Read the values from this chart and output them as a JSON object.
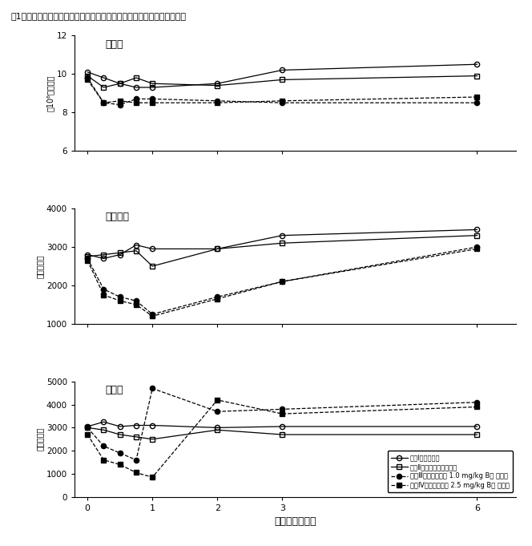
{
  "title": "図1：キシラジン投与による赤血球数，リンパ球数および好中球数の変動",
  "xlabel": "（処置後時間）",
  "x": [
    0,
    0.25,
    0.5,
    0.75,
    1,
    2,
    3,
    6
  ],
  "xticks": [
    0,
    1,
    2,
    3,
    6
  ],
  "rbc": {
    "label": "赤血球",
    "ylabel": "（10⁶個／㎣）",
    "ylim": [
      6,
      12
    ],
    "yticks": [
      6,
      8,
      10,
      12
    ],
    "I": [
      10.1,
      9.8,
      9.5,
      9.3,
      9.3,
      9.5,
      10.2,
      10.5
    ],
    "II": [
      9.9,
      9.3,
      9.5,
      9.8,
      9.5,
      9.4,
      9.7,
      9.9
    ],
    "III": [
      9.8,
      8.5,
      8.4,
      8.7,
      8.7,
      8.6,
      8.5,
      8.5
    ],
    "IV": [
      9.7,
      8.5,
      8.6,
      8.5,
      8.5,
      8.5,
      8.6,
      8.8
    ]
  },
  "lymph": {
    "label": "リンパ球",
    "ylabel": "（個／㎣）",
    "ylim": [
      1000,
      4000
    ],
    "yticks": [
      1000,
      2000,
      3000,
      4000
    ],
    "I": [
      2800,
      2700,
      2800,
      3050,
      2950,
      2950,
      3300,
      3450
    ],
    "II": [
      2750,
      2800,
      2850,
      2900,
      2500,
      2950,
      3100,
      3300
    ],
    "III": [
      2700,
      1900,
      1700,
      1600,
      1250,
      1700,
      2100,
      3000
    ],
    "IV": [
      2650,
      1750,
      1600,
      1500,
      1200,
      1650,
      2100,
      2950
    ]
  },
  "neutro": {
    "label": "好中球",
    "ylabel": "（個／㎣）",
    "ylim": [
      0,
      5000
    ],
    "yticks": [
      0,
      1000,
      2000,
      3000,
      4000,
      5000
    ],
    "I": [
      3050,
      3250,
      3050,
      3100,
      3100,
      3000,
      3050,
      3050
    ],
    "II": [
      3000,
      2900,
      2700,
      2600,
      2500,
      2900,
      2700,
      2700
    ],
    "III": [
      3000,
      2200,
      1900,
      1600,
      4700,
      3700,
      3800,
      4100
    ],
    "IV": [
      2700,
      1600,
      1400,
      1050,
      850,
      4200,
      3600,
      3900
    ]
  },
  "legend": [
    "処置Ⅰ（無処理）",
    "処置Ⅱ（生理食塩水筋注）",
    "処置Ⅲ（キシラジン 1.0 mg/kg B筋 筋注）",
    "処理Ⅳ（キシラジン 2.5 mg/kg B筋 筋注）"
  ]
}
